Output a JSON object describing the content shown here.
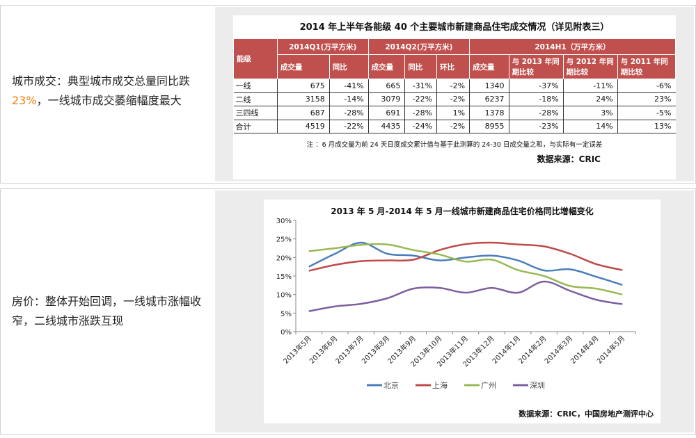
{
  "section1": {
    "text_before": "城市成交：典型城市成交总量同比跌",
    "highlight": "23%",
    "text_after": "，一线城市成交萎缩幅度最大",
    "table": {
      "title": "2014 年上半年各能级 40 个主要城市新建商品住宅成交情况（详见附表三）",
      "group_headers": [
        "能级",
        "2014Q1(万平方米)",
        "2014Q2(万平方米)",
        "2014H1（万平方米）"
      ],
      "sub_headers": [
        "成交量",
        "同比",
        "成交量",
        "同比",
        "环比",
        "成交量",
        "与 2013 年同期比较",
        "与 2012 年同期比较",
        "与 2011 年同期比较"
      ],
      "rows": [
        [
          "一线",
          "675",
          "-41%",
          "665",
          "-31%",
          "-2%",
          "1340",
          "-37%",
          "-11%",
          "-6%"
        ],
        [
          "二线",
          "3158",
          "-14%",
          "3079",
          "-22%",
          "-2%",
          "6237",
          "-18%",
          "24%",
          "23%"
        ],
        [
          "三四线",
          "687",
          "-28%",
          "691",
          "-28%",
          "1%",
          "1378",
          "-28%",
          "3%",
          "-5%"
        ],
        [
          "合计",
          "4519",
          "-22%",
          "4435",
          "-24%",
          "-2%",
          "8955",
          "-23%",
          "14%",
          "13%"
        ]
      ],
      "note": "注 ：6 月成交量为前 24 天日度成交累计值与基于此测算的 24-30 日成交量之和，与实际有一定误差",
      "source": "数据来源：CRIC"
    }
  },
  "section2": {
    "text": "房价：整体开始回调，一线城市涨幅收窄，二线城市涨跌互现",
    "source": "数据来源：CRIC，中国房地产测评中心"
  },
  "chart_data": {
    "type": "line",
    "title": "2013 年 5 月-2014 年 5 月一线城市新建商品住宅价格同比增幅变化",
    "categories": [
      "2013年5月",
      "2013年6月",
      "2013年7月",
      "2013年8月",
      "2013年9月",
      "2013年10月",
      "2013年11月",
      "2013年12月",
      "2014年1月",
      "2014年2月",
      "2014年3月",
      "2014年4月",
      "2014年5月"
    ],
    "ylim": [
      0,
      30
    ],
    "yticks": [
      "0%",
      "5%",
      "10%",
      "15%",
      "20%",
      "25%",
      "30%"
    ],
    "legend": "bottom",
    "series": [
      {
        "name": "北京",
        "color": "#4a7ebb",
        "values": [
          17.5,
          21,
          24,
          21,
          20.5,
          19.2,
          20,
          20.5,
          19.2,
          16.5,
          16.8,
          14.8,
          12.6
        ]
      },
      {
        "name": "上海",
        "color": "#be4b48",
        "values": [
          16.4,
          18,
          19,
          19.2,
          19.4,
          22,
          23.6,
          24,
          23.5,
          23,
          21,
          18.2,
          16.6
        ]
      },
      {
        "name": "广州",
        "color": "#98b954",
        "values": [
          21.7,
          22.5,
          23.4,
          23.5,
          22,
          20.8,
          18.9,
          19.4,
          16.6,
          15,
          12.3,
          11.6,
          10
        ]
      },
      {
        "name": "深圳",
        "color": "#7d5fa0",
        "values": [
          5.5,
          6.8,
          7.5,
          9,
          11.6,
          11.8,
          10.5,
          11.8,
          10.5,
          13.5,
          11,
          8.6,
          7.4
        ]
      }
    ]
  }
}
